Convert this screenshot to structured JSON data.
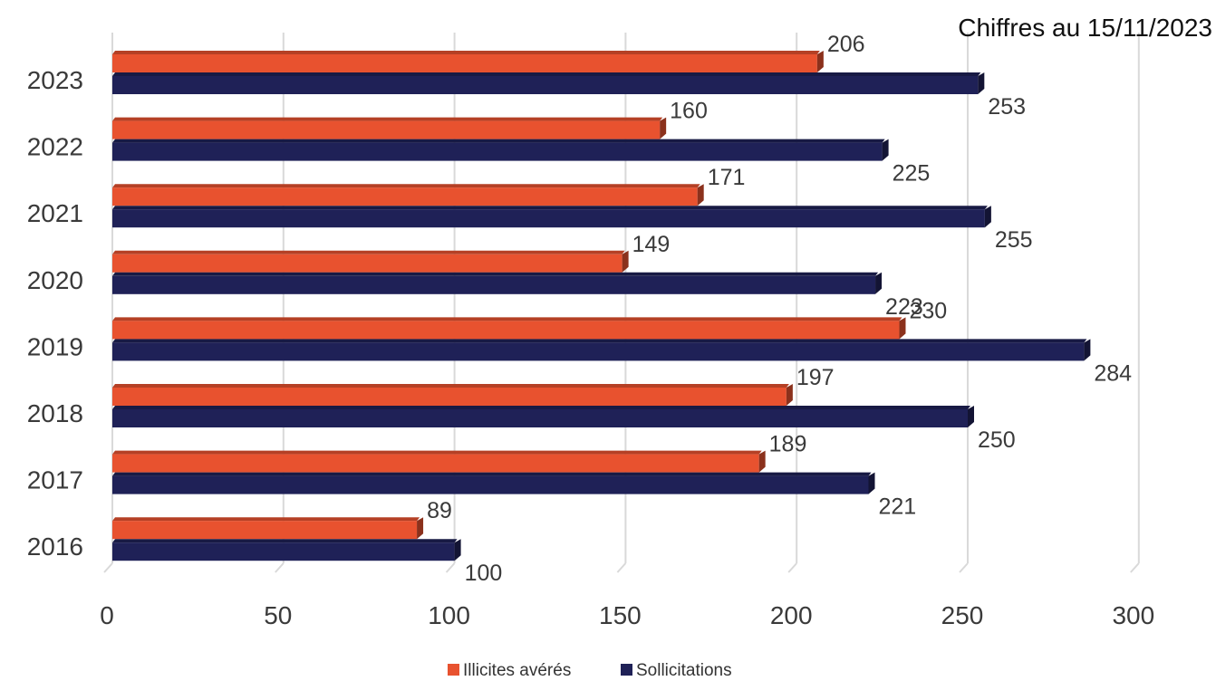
{
  "note": "Chiffres au 15/11/2023",
  "chart_data": {
    "type": "bar",
    "orientation": "horizontal",
    "categories": [
      "2023",
      "2022",
      "2021",
      "2020",
      "2019",
      "2018",
      "2017",
      "2016"
    ],
    "series": [
      {
        "name": "Illicites avérés",
        "color": "#E8522F",
        "values": [
          206,
          160,
          171,
          149,
          230,
          197,
          189,
          89
        ]
      },
      {
        "name": "Sollicitations",
        "color": "#1F2157",
        "values": [
          253,
          225,
          255,
          223,
          284,
          250,
          221,
          100
        ]
      }
    ],
    "xlim": [
      0,
      300
    ],
    "xticks": [
      "0",
      "50",
      "100",
      "150",
      "200",
      "250",
      "300"
    ],
    "grid": true,
    "legend": "bottom"
  }
}
